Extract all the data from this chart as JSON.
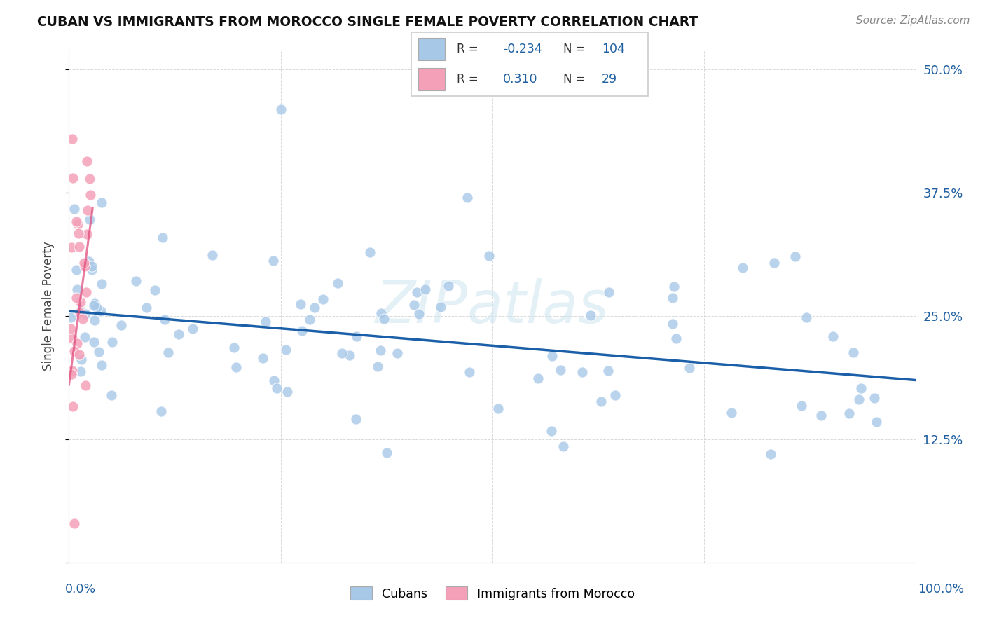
{
  "title": "CUBAN VS IMMIGRANTS FROM MOROCCO SINGLE FEMALE POVERTY CORRELATION CHART",
  "source": "Source: ZipAtlas.com",
  "ylabel": "Single Female Poverty",
  "ytick_vals": [
    0.0,
    0.125,
    0.25,
    0.375,
    0.5
  ],
  "ytick_labels_right": [
    "",
    "12.5%",
    "25.0%",
    "37.5%",
    "50.0%"
  ],
  "legend_cubans_R": "-0.234",
  "legend_cubans_N": "104",
  "legend_morocco_R": "0.310",
  "legend_morocco_N": "29",
  "legend_label1": "Cubans",
  "legend_label2": "Immigrants from Morocco",
  "blue_scatter_color": "#a8c8e8",
  "blue_line_color": "#1a5fa8",
  "pink_scatter_color": "#f4a0b8",
  "pink_line_color": "#e05080",
  "watermark": "ZIPatlas",
  "xlim": [
    0.0,
    1.0
  ],
  "ylim": [
    0.0,
    0.52
  ],
  "blue_trend_x0": 0.0,
  "blue_trend_y0": 0.255,
  "blue_trend_x1": 1.0,
  "blue_trend_y1": 0.185,
  "pink_trend_x0": 0.0,
  "pink_trend_y0": 0.18,
  "pink_trend_x1": 0.028,
  "pink_trend_y1": 0.36
}
